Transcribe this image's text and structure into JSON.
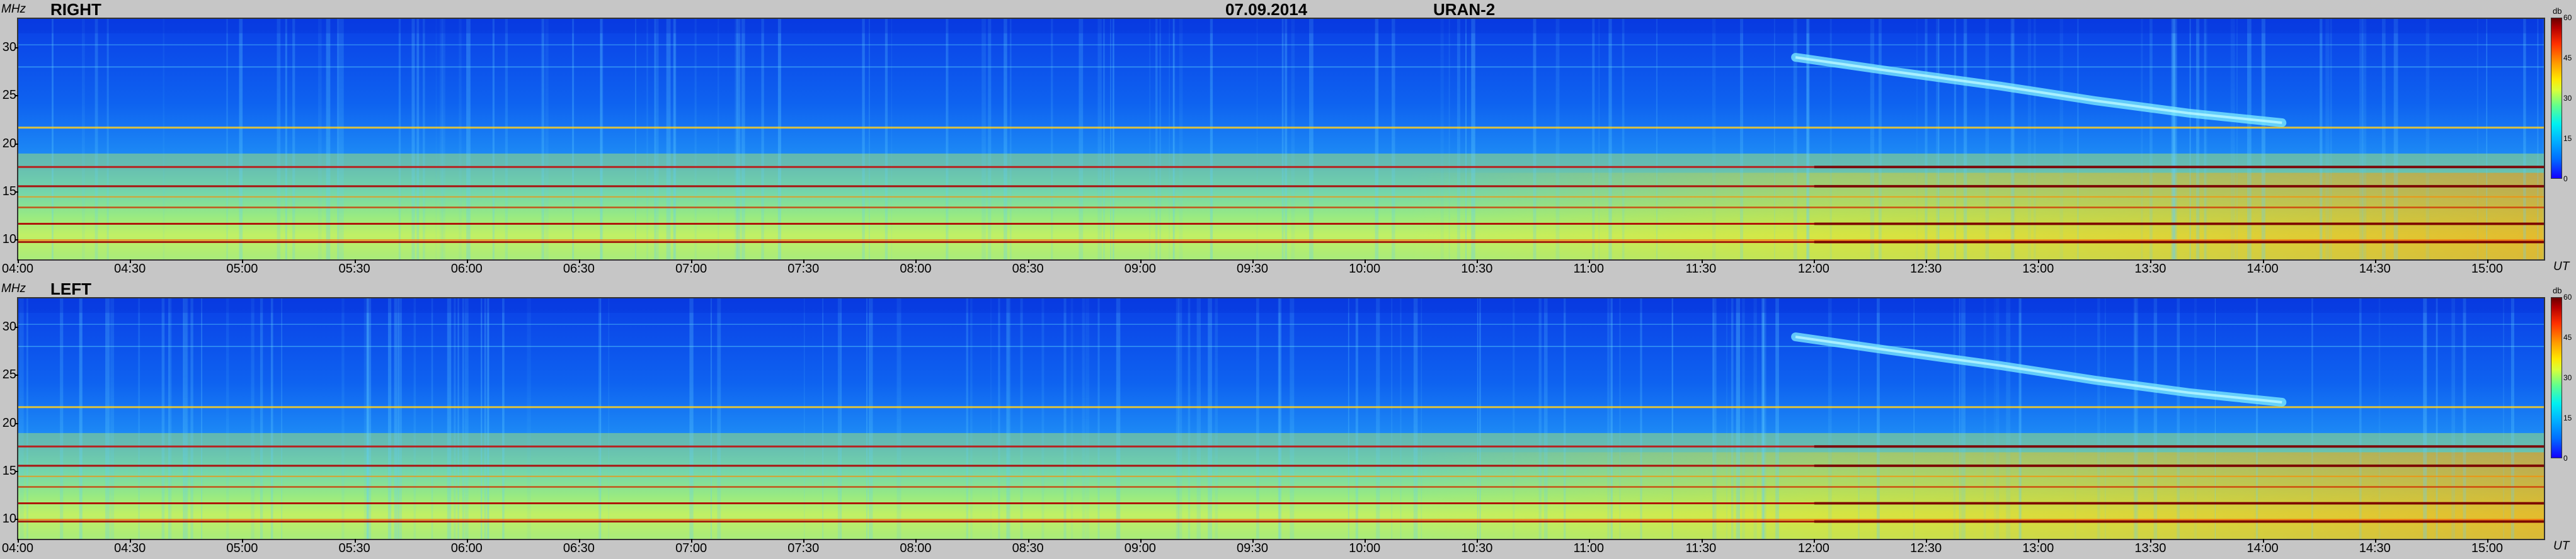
{
  "header": {
    "date": "07.09.2014",
    "instrument": "URAN-2"
  },
  "chart_data": [
    {
      "type": "heatmap",
      "title": "RIGHT",
      "ylabel": "MHz",
      "xlabel": "UT",
      "ylim": [
        8,
        33
      ],
      "xlim": [
        "04:00",
        "15:15"
      ],
      "yticks": [
        10,
        15,
        20,
        25,
        30
      ],
      "xticks": [
        "04:00",
        "04:30",
        "05:00",
        "05:30",
        "06:00",
        "06:30",
        "07:00",
        "07:30",
        "08:00",
        "08:30",
        "09:00",
        "09:30",
        "10:00",
        "10:30",
        "11:00",
        "11:30",
        "12:00",
        "12:30",
        "13:00",
        "13:30",
        "14:00",
        "14:30",
        "15:00"
      ],
      "colorbar": {
        "label": "db",
        "range": [
          0,
          60
        ],
        "ticks": [
          0,
          15,
          30,
          45,
          60
        ]
      }
    },
    {
      "type": "heatmap",
      "title": "LEFT",
      "ylabel": "MHz",
      "xlabel": "UT",
      "ylim": [
        8,
        33
      ],
      "xlim": [
        "04:00",
        "15:15"
      ],
      "yticks": [
        10,
        15,
        20,
        25,
        30
      ],
      "xticks": [
        "04:00",
        "04:30",
        "05:00",
        "05:30",
        "06:00",
        "06:30",
        "07:00",
        "07:30",
        "08:00",
        "08:30",
        "09:00",
        "09:30",
        "10:00",
        "10:30",
        "11:00",
        "11:30",
        "12:00",
        "12:30",
        "13:00",
        "13:30",
        "14:00",
        "14:30",
        "15:00"
      ],
      "colorbar": {
        "label": "db",
        "range": [
          0,
          60
        ],
        "ticks": [
          0,
          15,
          30,
          45,
          60
        ]
      }
    }
  ]
}
